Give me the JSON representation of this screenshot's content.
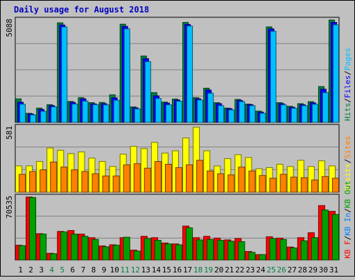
{
  "chart_data": [
    {
      "type": "bar",
      "title": "Daily usage for August 2018",
      "ymax_label": "5088",
      "ylim": [
        0,
        5088
      ],
      "categories": [
        "1",
        "2",
        "3",
        "4",
        "5",
        "6",
        "7",
        "8",
        "9",
        "10",
        "11",
        "12",
        "13",
        "14",
        "15",
        "16",
        "17",
        "18",
        "19",
        "20",
        "21",
        "22",
        "23",
        "24",
        "25",
        "26",
        "27",
        "28",
        "29",
        "30",
        "31"
      ],
      "weekend_days": [
        "4",
        "5",
        "11",
        "12",
        "18",
        "19",
        "25",
        "26"
      ],
      "legend": [
        {
          "text": "Hits",
          "color": "#008040"
        },
        {
          "text": "/",
          "color": "#000000"
        },
        {
          "text": "Files",
          "color": "#0000ff"
        },
        {
          "text": "/",
          "color": "#000000"
        },
        {
          "text": "Pages",
          "color": "#00c0ff"
        }
      ],
      "series": [
        {
          "name": "Hits",
          "color": "#008040",
          "values": [
            1170,
            450,
            710,
            880,
            4950,
            1040,
            1230,
            980,
            990,
            1370,
            4880,
            770,
            3300,
            1480,
            1010,
            1160,
            4970,
            1230,
            1700,
            980,
            710,
            1140,
            910,
            560,
            4750,
            980,
            800,
            930,
            1030,
            1780,
            5088
          ]
        },
        {
          "name": "Files",
          "color": "#0000ff",
          "values": [
            1000,
            420,
            640,
            830,
            4840,
            990,
            1170,
            920,
            930,
            1220,
            4770,
            720,
            3170,
            1320,
            960,
            1110,
            4870,
            1170,
            1610,
            930,
            680,
            1090,
            880,
            510,
            4650,
            930,
            750,
            880,
            970,
            1650,
            4970
          ]
        },
        {
          "name": "Pages",
          "color": "#00c0ff",
          "values": [
            900,
            370,
            550,
            770,
            4740,
            910,
            1060,
            880,
            870,
            1100,
            4650,
            670,
            3020,
            1190,
            870,
            1050,
            4790,
            1110,
            1450,
            830,
            620,
            1030,
            830,
            450,
            4530,
            870,
            700,
            830,
            900,
            1480,
            4850
          ]
        }
      ]
    },
    {
      "type": "bar",
      "ymax_label": "581",
      "ylim": [
        0,
        581
      ],
      "legend": [
        {
          "text": "Visits",
          "color": "#ffff00"
        },
        {
          "text": "/",
          "color": "#000000"
        },
        {
          "text": "Sites",
          "color": "#ff8000"
        }
      ],
      "series": [
        {
          "name": "Visits",
          "color": "#ffff00",
          "values": [
            235,
            235,
            275,
            395,
            375,
            345,
            360,
            305,
            275,
            230,
            340,
            410,
            390,
            445,
            350,
            370,
            485,
            581,
            370,
            235,
            300,
            335,
            310,
            210,
            220,
            250,
            230,
            285,
            230,
            280,
            235
          ]
        },
        {
          "name": "Sites",
          "color": "#ff8000",
          "values": [
            160,
            185,
            200,
            270,
            225,
            200,
            185,
            165,
            145,
            145,
            245,
            255,
            215,
            275,
            250,
            220,
            245,
            285,
            190,
            165,
            155,
            225,
            190,
            150,
            125,
            160,
            135,
            130,
            110,
            140,
            125
          ]
        }
      ]
    },
    {
      "type": "bar",
      "ymax_label": "70535",
      "ylim": [
        0,
        70535
      ],
      "legend": [
        {
          "text": "KB F",
          "color": "#ff0000"
        },
        {
          "text": "/",
          "color": "#000000"
        },
        {
          "text": "KB In",
          "color": "#0080ff"
        },
        {
          "text": "/",
          "color": "#000000"
        },
        {
          "text": "KB Out",
          "color": "#00a000"
        }
      ],
      "series": [
        {
          "name": "KB F",
          "color": "#ff0000",
          "values": [
            16500,
            70535,
            29500,
            7500,
            32000,
            33000,
            29000,
            25000,
            15700,
            17000,
            25000,
            11000,
            26500,
            25000,
            19000,
            18000,
            38000,
            25000,
            26500,
            24500,
            22500,
            24000,
            9500,
            6000,
            26000,
            24500,
            14500,
            25000,
            30500,
            61000,
            54500
          ]
        },
        {
          "name": "KB Out",
          "color": "#00a000",
          "values": [
            16000,
            70000,
            29000,
            7000,
            31500,
            29000,
            26500,
            23000,
            14800,
            16500,
            25500,
            10000,
            24000,
            22000,
            18000,
            17000,
            36000,
            22500,
            23000,
            22000,
            21000,
            20500,
            8500,
            6000,
            24000,
            23000,
            13500,
            21500,
            25000,
            56000,
            51000
          ]
        }
      ]
    }
  ]
}
